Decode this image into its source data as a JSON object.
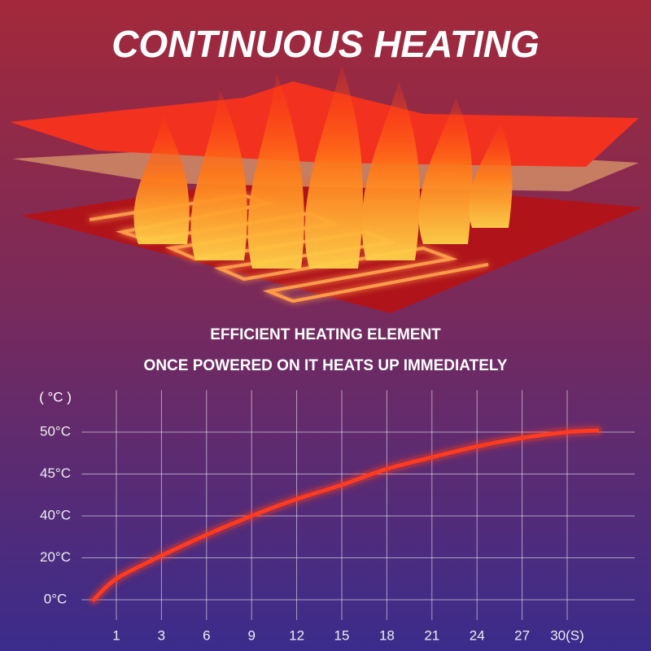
{
  "chart_data": {
    "type": "line",
    "title": "CONTINUOUS HEATING",
    "subtitles": [
      "EFFICIENT HEATING ELEMENT",
      "ONCE POWERED ON IT HEATS UP IMMEDIATELY"
    ],
    "y_label": "( °C )",
    "x": [
      0,
      1,
      3,
      6,
      9,
      12,
      15,
      18,
      21,
      24,
      27,
      30,
      32
    ],
    "values": [
      0,
      10,
      21,
      31,
      40,
      42,
      43.7,
      45.6,
      47,
      48.3,
      49.3,
      50,
      50.2
    ],
    "color": "#ff3a1e",
    "xlim": [
      0,
      32
    ],
    "ylim": [
      0,
      55
    ],
    "xticks": [
      1,
      3,
      6,
      9,
      12,
      15,
      18,
      21,
      24,
      27,
      {
        "value": 30,
        "label": "30(S)"
      }
    ],
    "yticks": [
      {
        "value": 0,
        "label": "0°C"
      },
      {
        "value": 20,
        "label": "20°C"
      },
      {
        "value": 40,
        "label": "40°C"
      },
      {
        "value": 45,
        "label": "45°C"
      },
      {
        "value": 50,
        "label": "50°C"
      }
    ],
    "grid": true
  }
}
